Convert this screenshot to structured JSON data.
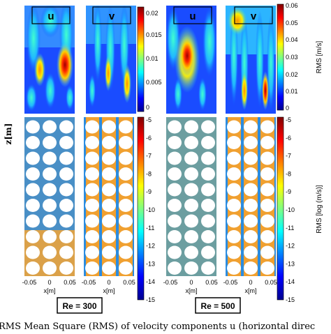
{
  "figure": {
    "panel_labels": [
      "u",
      "v",
      "u",
      "v"
    ],
    "z_axis_label": "z[m]",
    "x_axis_label": "x[m]",
    "x_ticks": [
      "-0.05",
      "0",
      "0.05"
    ],
    "top_colorbar_left": {
      "ticks": [
        "0.02",
        "0.015",
        "0.01",
        "0.005",
        "0"
      ]
    },
    "top_colorbar_right": {
      "label": "RMS [m/s]",
      "ticks": [
        "0.06",
        "0.05",
        "0.04",
        "0.03",
        "0.02",
        "0.01",
        "0"
      ]
    },
    "bottom_colorbar_left": {
      "ticks": [
        "-5",
        "-6",
        "-7",
        "-8",
        "-9",
        "-10",
        "-11",
        "-12",
        "-13",
        "-14",
        "-15"
      ]
    },
    "bottom_colorbar_right": {
      "label": "RMS [log (m/s)]",
      "ticks": [
        "-5",
        "-6",
        "-7",
        "-8",
        "-9",
        "-10",
        "-11",
        "-12",
        "-13",
        "-14",
        "-15"
      ]
    },
    "group_labels": [
      "Re = 300",
      "Re = 500"
    ],
    "caption": "RMS Mean Square (RMS) of velocity components u (horizontal direc"
  }
}
